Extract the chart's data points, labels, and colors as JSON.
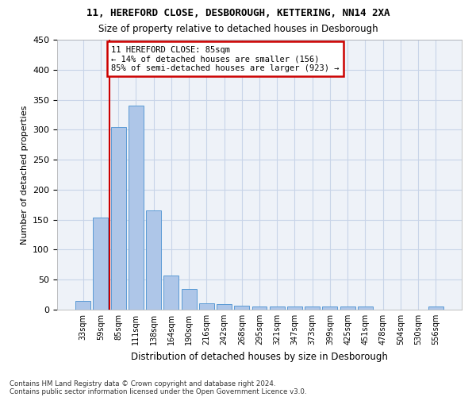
{
  "title1": "11, HEREFORD CLOSE, DESBOROUGH, KETTERING, NN14 2XA",
  "title2": "Size of property relative to detached houses in Desborough",
  "xlabel": "Distribution of detached houses by size in Desborough",
  "ylabel": "Number of detached properties",
  "categories": [
    "33sqm",
    "59sqm",
    "85sqm",
    "111sqm",
    "138sqm",
    "164sqm",
    "190sqm",
    "216sqm",
    "242sqm",
    "268sqm",
    "295sqm",
    "321sqm",
    "347sqm",
    "373sqm",
    "399sqm",
    "425sqm",
    "451sqm",
    "478sqm",
    "504sqm",
    "530sqm",
    "556sqm"
  ],
  "values": [
    15,
    153,
    305,
    340,
    165,
    57,
    35,
    10,
    9,
    7,
    5,
    5,
    5,
    5,
    5,
    5,
    5,
    0,
    0,
    0,
    5
  ],
  "bar_color": "#aec6e8",
  "bar_edge_color": "#5b9bd5",
  "red_line_x": 1.5,
  "annotation_text": "11 HEREFORD CLOSE: 85sqm\n← 14% of detached houses are smaller (156)\n85% of semi-detached houses are larger (923) →",
  "annotation_box_color": "#ffffff",
  "annotation_box_edge_color": "#cc0000",
  "ylim": [
    0,
    450
  ],
  "yticks": [
    0,
    50,
    100,
    150,
    200,
    250,
    300,
    350,
    400,
    450
  ],
  "footnote1": "Contains HM Land Registry data © Crown copyright and database right 2024.",
  "footnote2": "Contains public sector information licensed under the Open Government Licence v3.0.",
  "grid_color": "#c8d4e8",
  "background_color": "#eef2f8",
  "fig_width": 6.0,
  "fig_height": 5.0,
  "dpi": 100
}
